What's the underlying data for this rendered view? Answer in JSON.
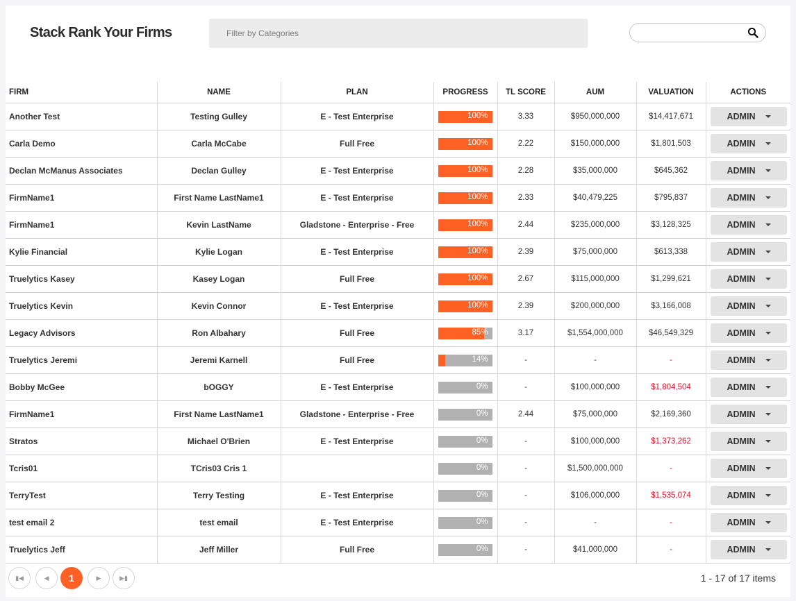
{
  "header": {
    "title": "Stack Rank Your Firms",
    "filter_placeholder": "Filter by Categories",
    "search_value": ""
  },
  "columns": [
    "FIRM",
    "NAME",
    "PLAN",
    "PROGRESS",
    "TL SCORE",
    "AUM",
    "VALUATION",
    "ACTIONS"
  ],
  "rows": [
    {
      "firm": "Another Test",
      "name": "Testing Gulley",
      "plan": "E - Test Enterprise",
      "progress": 100,
      "progress_label": "100%",
      "tl_score": "3.33",
      "aum": "$950,000,000",
      "valuation": "$14,417,671",
      "valuation_negative": false,
      "action": "ADMIN"
    },
    {
      "firm": "Carla Demo",
      "name": "Carla McCabe",
      "plan": "Full Free",
      "progress": 100,
      "progress_label": "100%",
      "tl_score": "2.22",
      "aum": "$150,000,000",
      "valuation": "$1,801,503",
      "valuation_negative": false,
      "action": "ADMIN"
    },
    {
      "firm": "Declan McManus Associates",
      "name": "Declan Gulley",
      "plan": "E - Test Enterprise",
      "progress": 100,
      "progress_label": "100%",
      "tl_score": "2.28",
      "aum": "$35,000,000",
      "valuation": "$645,362",
      "valuation_negative": false,
      "action": "ADMIN"
    },
    {
      "firm": "FirmName1",
      "name": "First Name LastName1",
      "plan": "E - Test Enterprise",
      "progress": 100,
      "progress_label": "100%",
      "tl_score": "2.33",
      "aum": "$40,479,225",
      "valuation": "$795,837",
      "valuation_negative": false,
      "action": "ADMIN"
    },
    {
      "firm": "FirmName1",
      "name": "Kevin LastName",
      "plan": "Gladstone - Enterprise - Free",
      "progress": 100,
      "progress_label": "100%",
      "tl_score": "2.44",
      "aum": "$235,000,000",
      "valuation": "$3,128,325",
      "valuation_negative": false,
      "action": "ADMIN"
    },
    {
      "firm": "Kylie Financial",
      "name": "Kylie Logan",
      "plan": "E - Test Enterprise",
      "progress": 100,
      "progress_label": "100%",
      "tl_score": "2.39",
      "aum": "$75,000,000",
      "valuation": "$613,338",
      "valuation_negative": false,
      "action": "ADMIN"
    },
    {
      "firm": "Truelytics Kasey",
      "name": "Kasey Logan",
      "plan": "Full Free",
      "progress": 100,
      "progress_label": "100%",
      "tl_score": "2.67",
      "aum": "$115,000,000",
      "valuation": "$1,299,621",
      "valuation_negative": false,
      "action": "ADMIN"
    },
    {
      "firm": "Truelytics Kevin",
      "name": "Kevin Connor",
      "plan": "E - Test Enterprise",
      "progress": 100,
      "progress_label": "100%",
      "tl_score": "2.39",
      "aum": "$200,000,000",
      "valuation": "$3,166,008",
      "valuation_negative": false,
      "action": "ADMIN"
    },
    {
      "firm": "Legacy Advisors",
      "name": "Ron Albahary",
      "plan": "Full Free",
      "progress": 85,
      "progress_label": "85%",
      "tl_score": "3.17",
      "aum": "$1,554,000,000",
      "valuation": "$46,549,329",
      "valuation_negative": false,
      "action": "ADMIN"
    },
    {
      "firm": "Truelytics Jeremi",
      "name": "Jeremi Karnell",
      "plan": "Full Free",
      "progress": 14,
      "progress_label": "14%",
      "tl_score": "-",
      "aum": "-",
      "valuation": "-",
      "valuation_negative": true,
      "action": "ADMIN"
    },
    {
      "firm": "Bobby McGee",
      "name": "bOGGY",
      "plan": "E - Test Enterprise",
      "progress": 0,
      "progress_label": "0%",
      "tl_score": "-",
      "aum": "$100,000,000",
      "valuation": "$1,804,504",
      "valuation_negative": true,
      "action": "ADMIN"
    },
    {
      "firm": "FirmName1",
      "name": "First Name LastName1",
      "plan": "Gladstone - Enterprise - Free",
      "progress": 0,
      "progress_label": "0%",
      "tl_score": "2.44",
      "aum": "$75,000,000",
      "valuation": "$2,169,360",
      "valuation_negative": false,
      "action": "ADMIN"
    },
    {
      "firm": "Stratos",
      "name": "Michael O'Brien",
      "plan": "E - Test Enterprise",
      "progress": 0,
      "progress_label": "0%",
      "tl_score": "-",
      "aum": "$100,000,000",
      "valuation": "$1,373,262",
      "valuation_negative": true,
      "action": "ADMIN"
    },
    {
      "firm": "Tcris01",
      "name": "TCris03 Cris 1",
      "plan": "",
      "progress": 0,
      "progress_label": "0%",
      "tl_score": "-",
      "aum": "$1,500,000,000",
      "valuation": "-",
      "valuation_negative": true,
      "action": "ADMIN"
    },
    {
      "firm": "TerryTest",
      "name": "Terry Testing",
      "plan": "E - Test Enterprise",
      "progress": 0,
      "progress_label": "0%",
      "tl_score": "-",
      "aum": "$106,000,000",
      "valuation": "$1,535,074",
      "valuation_negative": true,
      "action": "ADMIN"
    },
    {
      "firm": "test email 2",
      "name": "test email",
      "plan": "E - Test Enterprise",
      "progress": 0,
      "progress_label": "0%",
      "tl_score": "-",
      "aum": "-",
      "valuation": "-",
      "valuation_negative": true,
      "action": "ADMIN"
    },
    {
      "firm": "Truelytics Jeff",
      "name": "Jeff Miller",
      "plan": "Full Free",
      "progress": 0,
      "progress_label": "0%",
      "tl_score": "-",
      "aum": "$41,000,000",
      "valuation": "-",
      "valuation_negative": true,
      "action": "ADMIN"
    }
  ],
  "pagination": {
    "current_page": "1",
    "items_label": "1 - 17 of 17 items"
  },
  "colors": {
    "accent": "#ff6124",
    "progress_track": "#b1b1b1",
    "negative_value": "#e0132a"
  }
}
